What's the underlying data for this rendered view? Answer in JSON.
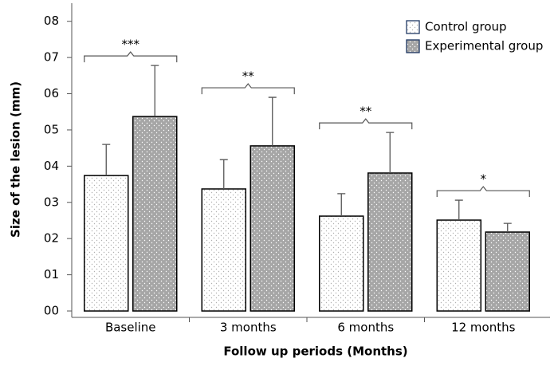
{
  "chart_data": {
    "type": "bar",
    "xlabel": "Follow up periods (Months)",
    "ylabel": "Size of the lesion (mm)",
    "categories": [
      "Baseline",
      "3 months",
      "6 months",
      "12 months"
    ],
    "series": [
      {
        "name": "Control group",
        "color": "#ffffff",
        "values": [
          3.74,
          3.37,
          2.62,
          2.51
        ],
        "errors": [
          0.86,
          0.81,
          0.62,
          0.55
        ]
      },
      {
        "name": "Experimental group",
        "color": "#a6a6a6",
        "values": [
          5.37,
          4.56,
          3.81,
          2.18
        ],
        "errors": [
          1.41,
          1.34,
          1.12,
          0.24
        ]
      }
    ],
    "annotations": [
      "***",
      "**",
      "**",
      "*"
    ],
    "ylim": [
      0,
      8.5
    ],
    "yticks": [
      {
        "value": 0,
        "label": "00"
      },
      {
        "value": 1,
        "label": "01"
      },
      {
        "value": 2,
        "label": "02"
      },
      {
        "value": 3,
        "label": "03"
      },
      {
        "value": 4,
        "label": "04"
      },
      {
        "value": 5,
        "label": "05"
      },
      {
        "value": 6,
        "label": "06"
      },
      {
        "value": 7,
        "label": "07"
      },
      {
        "value": 8,
        "label": "08"
      }
    ],
    "legend": "upper right"
  }
}
